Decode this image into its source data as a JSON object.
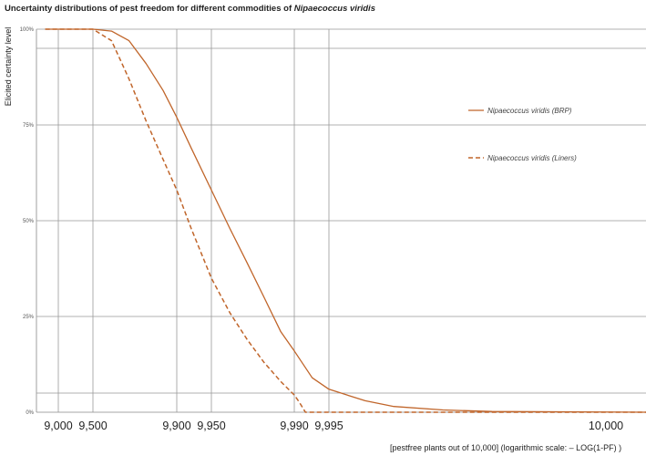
{
  "chart_data": {
    "type": "line",
    "title": "Uncertainty distributions of pest freedom for different commodities of ",
    "title_species": "Nipaecoccus viridis",
    "ylabel": "Elicited certainty level",
    "xlabel": "[pestfree plants out of 10,000] (logarithmic scale: – LOG(1-PF) )",
    "x_scale": "log of (10000 - pestfree plants)",
    "x_ticks": [
      9000,
      9500,
      9900,
      9950,
      9990,
      9995,
      10000
    ],
    "x_tick_labels": [
      "9,000",
      "9,500",
      "9,900",
      "9,950",
      "9,990",
      "9,995",
      "10,000"
    ],
    "y_ticks": [
      0,
      5,
      25,
      50,
      75,
      95,
      100
    ],
    "y_tick_labels": [
      "0%",
      "",
      "25%",
      "50%",
      "75%",
      "",
      "100%"
    ],
    "ylim": [
      0,
      100
    ],
    "grid": true,
    "legend_position": "right",
    "series": [
      {
        "name": "Nipaecoccus viridis (BRP)",
        "style": "solid",
        "color": "#c0652a",
        "points": [
          [
            8700,
            100
          ],
          [
            9500,
            100
          ],
          [
            9650,
            99.5
          ],
          [
            9750,
            97
          ],
          [
            9820,
            91
          ],
          [
            9870,
            84
          ],
          [
            9900,
            77
          ],
          [
            9925,
            69
          ],
          [
            9950,
            58
          ],
          [
            9965,
            48
          ],
          [
            9975,
            39
          ],
          [
            9982,
            30
          ],
          [
            9987,
            21
          ],
          [
            9990,
            16
          ],
          [
            9993,
            9
          ],
          [
            9995,
            6
          ],
          [
            9997,
            3
          ],
          [
            9998,
            1.5
          ],
          [
            9999,
            0.6
          ],
          [
            9999.5,
            0.2
          ],
          [
            10000,
            0
          ]
        ]
      },
      {
        "name": "Nipaecoccus viridis (Liners)",
        "style": "dashed",
        "color": "#c0652a",
        "points": [
          [
            8700,
            100
          ],
          [
            9500,
            100
          ],
          [
            9650,
            97
          ],
          [
            9750,
            87
          ],
          [
            9820,
            76
          ],
          [
            9870,
            66
          ],
          [
            9900,
            58
          ],
          [
            9925,
            48
          ],
          [
            9950,
            35
          ],
          [
            9965,
            26
          ],
          [
            9975,
            19
          ],
          [
            9982,
            13
          ],
          [
            9987,
            8
          ],
          [
            9990,
            4.5
          ],
          [
            9991,
            2.5
          ],
          [
            9992,
            0
          ],
          [
            10000,
            0
          ]
        ]
      }
    ]
  }
}
